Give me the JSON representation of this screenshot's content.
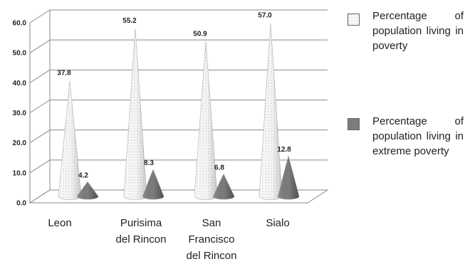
{
  "chart_data": {
    "type": "bar",
    "style": "3d-cone",
    "categories": [
      "Leon",
      "Purisima del Rincon",
      "San Francisco del Rincon",
      "Sialo"
    ],
    "category_lines": [
      [
        "Leon"
      ],
      [
        "Purisima",
        "del Rincon"
      ],
      [
        "San",
        "Francisco",
        "del Rincon"
      ],
      [
        "Sialo"
      ]
    ],
    "series": [
      {
        "name": "Percentage of population living in poverty",
        "values": [
          37.8,
          55.2,
          50.9,
          57.0
        ],
        "labels": [
          "37.8",
          "55.2",
          "50.9",
          "57.0"
        ],
        "pattern": "dotted-white"
      },
      {
        "name": "Percentage of population living in extreme poverty",
        "values": [
          4.2,
          8.3,
          6.8,
          12.8
        ],
        "labels": [
          "4.2",
          "8.3",
          "6.8",
          "12.8"
        ],
        "pattern": "dark-grey"
      }
    ],
    "ylim": [
      0,
      60
    ],
    "yticks": [
      "0.0",
      "10.0",
      "20.0",
      "30.0",
      "40.0",
      "50.0",
      "60.0"
    ],
    "grid": true,
    "legend_position": "right",
    "xlabel": "",
    "ylabel": "",
    "title": ""
  }
}
